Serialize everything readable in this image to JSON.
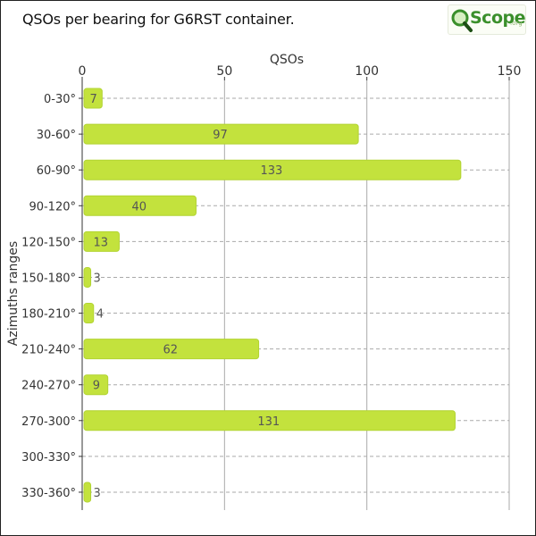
{
  "header": {
    "title": "QSOs per bearing for G6RST container.",
    "logo_text": "Scope",
    "logo_sub": ".org"
  },
  "colors": {
    "bar": "#c3e23d",
    "bar_stroke": "#b2d432",
    "grid": "#aaaaaa",
    "axis": "#333333",
    "logo_green": "#3a8f2b"
  },
  "chart_data": {
    "type": "bar",
    "orientation": "horizontal",
    "title": "QSOs per bearing for G6RST container.",
    "xlabel": "QSOs",
    "ylabel": "Azimuths ranges",
    "xlim": [
      0,
      150
    ],
    "xticks": [
      0,
      50,
      100,
      150
    ],
    "x_axis_position": "top",
    "grid": true,
    "categories": [
      "0-30°",
      "30-60°",
      "60-90°",
      "90-120°",
      "120-150°",
      "150-180°",
      "180-210°",
      "210-240°",
      "240-270°",
      "270-300°",
      "300-330°",
      "330-360°"
    ],
    "values": [
      7,
      97,
      133,
      40,
      13,
      3,
      4,
      62,
      9,
      131,
      0,
      3
    ],
    "data_labels": [
      "7",
      "97",
      "133",
      "40",
      "13",
      "3",
      "4",
      "62",
      "9",
      "131",
      "",
      "3"
    ]
  }
}
